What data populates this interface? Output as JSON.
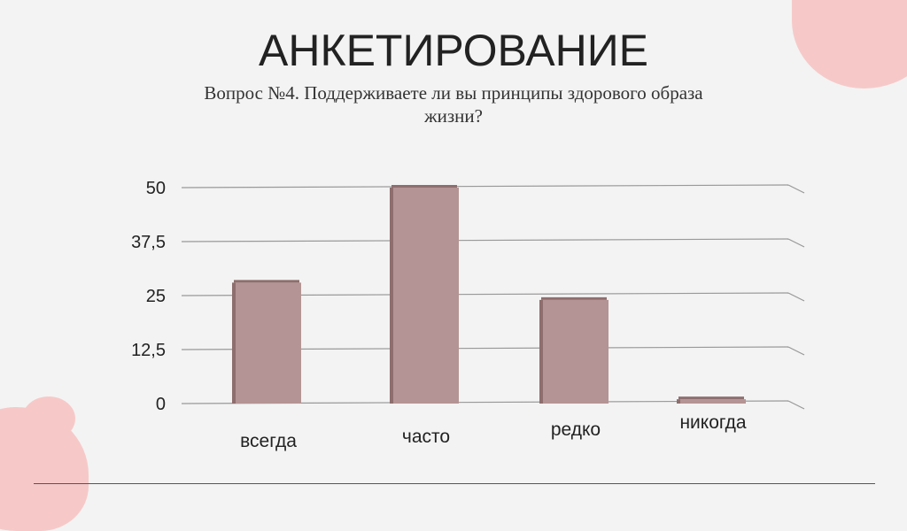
{
  "slide": {
    "title": "АНКЕТИРОВАНИЕ",
    "subtitle": "Вопрос №4. Поддерживаете ли вы принципы здорового образа жизни?"
  },
  "colors": {
    "bar": "#b49494",
    "bar_side": "#8e6e6e",
    "accent_blob": "#f6c9c8"
  },
  "chart_data": {
    "type": "bar",
    "style": "3d",
    "categories": [
      "всегда",
      "часто",
      "редко",
      "никогда"
    ],
    "values": [
      28,
      50,
      24,
      1
    ],
    "ylim": [
      0,
      50
    ],
    "yticks": [
      "0",
      "12,5",
      "25",
      "37,5",
      "50"
    ],
    "ytick_values": [
      0,
      12.5,
      25,
      37.5,
      50
    ],
    "grid": true,
    "legend": "none"
  }
}
